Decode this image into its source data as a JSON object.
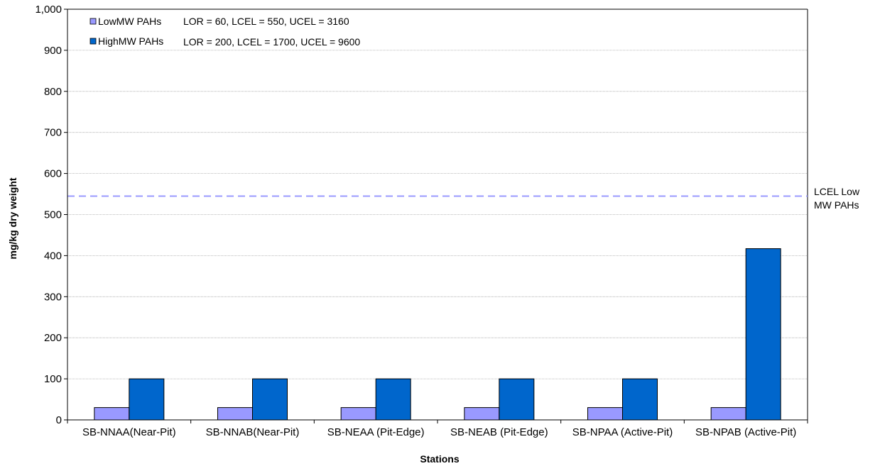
{
  "chart_data": {
    "type": "bar",
    "categories": [
      "SB-NNAA(Near-Pit)",
      "SB-NNAB(Near-Pit)",
      "SB-NEAA (Pit-Edge)",
      "SB-NEAB (Pit-Edge)",
      "SB-NPAA (Active-Pit)",
      "SB-NPAB (Active-Pit)"
    ],
    "series": [
      {
        "name": "LowMW PAHs",
        "note": "LOR = 60, LCEL = 550, UCEL = 3160",
        "color": "#9999ff",
        "values": [
          30,
          30,
          30,
          30,
          30,
          30
        ]
      },
      {
        "name": "HighMW PAHs",
        "note": "LOR = 200, LCEL = 1700, UCEL = 9600",
        "color": "#0066cc",
        "values": [
          100,
          100,
          100,
          100,
          100,
          417
        ]
      }
    ],
    "reference_lines": [
      {
        "label_line1": "LCEL Low",
        "label_line2": "MW PAHs",
        "value": 545,
        "color": "#9999ff",
        "style": "dashed"
      }
    ],
    "xlabel": "Stations",
    "ylabel": "mg/kg dry weight",
    "ylim": [
      0,
      1000
    ],
    "yticks": [
      "0",
      "100",
      "200",
      "300",
      "400",
      "500",
      "600",
      "700",
      "800",
      "900",
      "1,000"
    ],
    "grid": true,
    "legend_position": "top-left"
  }
}
